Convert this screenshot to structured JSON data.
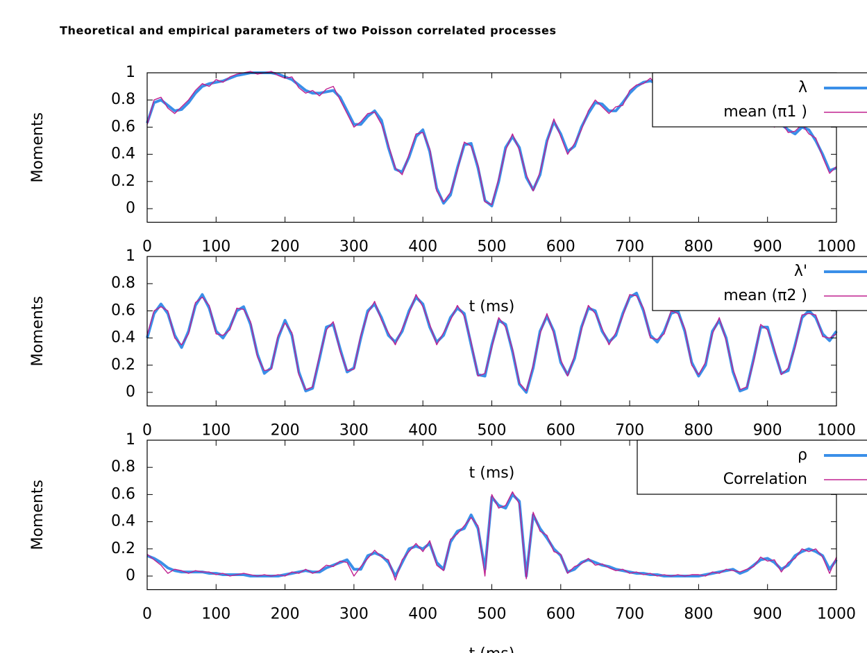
{
  "title": "Theoretical and empirical parameters of two Poisson correlated processes",
  "chart_data": [
    {
      "type": "line",
      "ylabel": "Moments",
      "xlabel": "t (ms)",
      "xlim": [
        0,
        1000
      ],
      "ylim": [
        -0.1,
        1
      ],
      "xticks": [
        0,
        100,
        200,
        300,
        400,
        500,
        600,
        700,
        800,
        900,
        1000
      ],
      "yticks": [
        0,
        0.2,
        0.4,
        0.6,
        0.8,
        1
      ],
      "legend": "upper right",
      "x": [
        0,
        10,
        20,
        30,
        40,
        50,
        60,
        70,
        80,
        90,
        100,
        110,
        120,
        130,
        140,
        150,
        160,
        170,
        180,
        190,
        200,
        210,
        220,
        230,
        240,
        250,
        260,
        270,
        280,
        290,
        300,
        310,
        320,
        330,
        340,
        350,
        360,
        370,
        380,
        390,
        400,
        410,
        420,
        430,
        440,
        450,
        460,
        470,
        480,
        490,
        500,
        510,
        520,
        530,
        540,
        550,
        560,
        570,
        580,
        590,
        600,
        610,
        620,
        630,
        640,
        650,
        660,
        670,
        680,
        690,
        700,
        710,
        720,
        730,
        740,
        750,
        760,
        770,
        780,
        790,
        800,
        810,
        820,
        830,
        840,
        850,
        860,
        870,
        880,
        890,
        900,
        910,
        920,
        930,
        940,
        950,
        960,
        970,
        980,
        990,
        1000
      ],
      "series": [
        {
          "name": "λ",
          "color": "#3a8fe8",
          "values": [
            0.63,
            0.78,
            0.8,
            0.76,
            0.72,
            0.73,
            0.78,
            0.85,
            0.9,
            0.92,
            0.93,
            0.94,
            0.96,
            0.98,
            0.99,
            1.0,
            1.0,
            1.0,
            1.0,
            0.99,
            0.97,
            0.95,
            0.91,
            0.87,
            0.85,
            0.85,
            0.86,
            0.87,
            0.82,
            0.72,
            0.62,
            0.62,
            0.68,
            0.72,
            0.65,
            0.45,
            0.29,
            0.27,
            0.38,
            0.53,
            0.58,
            0.42,
            0.15,
            0.04,
            0.1,
            0.3,
            0.47,
            0.48,
            0.3,
            0.06,
            0.02,
            0.2,
            0.45,
            0.53,
            0.45,
            0.23,
            0.14,
            0.25,
            0.5,
            0.64,
            0.55,
            0.42,
            0.46,
            0.6,
            0.7,
            0.78,
            0.77,
            0.72,
            0.72,
            0.78,
            0.85,
            0.9,
            0.93,
            0.94,
            0.92,
            0.93,
            0.95,
            0.96,
            0.97,
            0.97,
            0.96,
            0.95,
            0.93,
            0.9,
            0.88,
            0.85,
            0.82,
            0.78,
            0.74,
            0.7,
            0.66,
            0.63,
            0.62,
            0.58,
            0.55,
            0.6,
            0.58,
            0.5,
            0.4,
            0.28,
            0.3
          ]
        },
        {
          "name": "mean (π1 )",
          "color": "#c0208f",
          "values": [
            0.62,
            0.8,
            0.82,
            0.74,
            0.7,
            0.75,
            0.8,
            0.87,
            0.92,
            0.9,
            0.95,
            0.93,
            0.97,
            0.99,
            1.0,
            1.01,
            0.99,
            1.0,
            1.01,
            0.98,
            0.96,
            0.97,
            0.89,
            0.85,
            0.87,
            0.83,
            0.88,
            0.9,
            0.8,
            0.7,
            0.6,
            0.64,
            0.7,
            0.71,
            0.62,
            0.47,
            0.3,
            0.25,
            0.4,
            0.55,
            0.56,
            0.44,
            0.13,
            0.05,
            0.12,
            0.28,
            0.49,
            0.46,
            0.32,
            0.05,
            0.03,
            0.22,
            0.43,
            0.55,
            0.43,
            0.25,
            0.13,
            0.27,
            0.48,
            0.66,
            0.53,
            0.4,
            0.48,
            0.58,
            0.72,
            0.8,
            0.75,
            0.7,
            0.75,
            0.76,
            0.87,
            0.91,
            0.92,
            0.96,
            0.9,
            0.94,
            0.93,
            0.97,
            0.95,
            0.98,
            0.94,
            0.96,
            0.92,
            0.91,
            0.86,
            0.87,
            0.8,
            0.79,
            0.72,
            0.71,
            0.64,
            0.6,
            0.64,
            0.56,
            0.57,
            0.62,
            0.55,
            0.52,
            0.38,
            0.26,
            0.31
          ]
        }
      ]
    },
    {
      "type": "line",
      "ylabel": "Moments",
      "xlabel": "t (ms)",
      "xlim": [
        0,
        1000
      ],
      "ylim": [
        -0.1,
        1
      ],
      "xticks": [
        0,
        100,
        200,
        300,
        400,
        500,
        600,
        700,
        800,
        900,
        1000
      ],
      "yticks": [
        0,
        0.2,
        0.4,
        0.6,
        0.8,
        1
      ],
      "legend": "upper right",
      "x": [
        0,
        10,
        20,
        30,
        40,
        50,
        60,
        70,
        80,
        90,
        100,
        110,
        120,
        130,
        140,
        150,
        160,
        170,
        180,
        190,
        200,
        210,
        220,
        230,
        240,
        250,
        260,
        270,
        280,
        290,
        300,
        310,
        320,
        330,
        340,
        350,
        360,
        370,
        380,
        390,
        400,
        410,
        420,
        430,
        440,
        450,
        460,
        470,
        480,
        490,
        500,
        510,
        520,
        530,
        540,
        550,
        560,
        570,
        580,
        590,
        600,
        610,
        620,
        630,
        640,
        650,
        660,
        670,
        680,
        690,
        700,
        710,
        720,
        730,
        740,
        750,
        760,
        770,
        780,
        790,
        800,
        810,
        820,
        830,
        840,
        850,
        860,
        870,
        880,
        890,
        900,
        910,
        920,
        930,
        940,
        950,
        960,
        970,
        980,
        990,
        1000
      ],
      "series": [
        {
          "name": "λ'",
          "color": "#3a8fe8",
          "values": [
            0.4,
            0.58,
            0.65,
            0.58,
            0.42,
            0.33,
            0.45,
            0.64,
            0.72,
            0.62,
            0.45,
            0.4,
            0.48,
            0.6,
            0.63,
            0.5,
            0.28,
            0.14,
            0.18,
            0.4,
            0.53,
            0.42,
            0.15,
            0.01,
            0.03,
            0.25,
            0.48,
            0.5,
            0.32,
            0.15,
            0.18,
            0.4,
            0.6,
            0.65,
            0.55,
            0.42,
            0.37,
            0.45,
            0.6,
            0.7,
            0.65,
            0.48,
            0.37,
            0.42,
            0.55,
            0.62,
            0.58,
            0.35,
            0.13,
            0.12,
            0.35,
            0.53,
            0.5,
            0.3,
            0.06,
            0.0,
            0.18,
            0.45,
            0.56,
            0.45,
            0.22,
            0.13,
            0.25,
            0.48,
            0.62,
            0.6,
            0.45,
            0.37,
            0.42,
            0.58,
            0.7,
            0.73,
            0.6,
            0.42,
            0.37,
            0.45,
            0.58,
            0.6,
            0.45,
            0.22,
            0.12,
            0.2,
            0.45,
            0.53,
            0.4,
            0.15,
            0.01,
            0.03,
            0.25,
            0.48,
            0.48,
            0.3,
            0.14,
            0.16,
            0.35,
            0.55,
            0.6,
            0.55,
            0.43,
            0.38,
            0.45
          ]
        },
        {
          "name": "mean (π2 )",
          "color": "#c0208f",
          "values": [
            0.42,
            0.6,
            0.63,
            0.6,
            0.4,
            0.35,
            0.43,
            0.66,
            0.7,
            0.64,
            0.43,
            0.42,
            0.46,
            0.62,
            0.61,
            0.52,
            0.26,
            0.16,
            0.17,
            0.42,
            0.51,
            0.44,
            0.13,
            0.02,
            0.04,
            0.27,
            0.46,
            0.52,
            0.3,
            0.16,
            0.17,
            0.42,
            0.58,
            0.67,
            0.53,
            0.44,
            0.35,
            0.47,
            0.58,
            0.72,
            0.63,
            0.5,
            0.35,
            0.44,
            0.53,
            0.64,
            0.56,
            0.37,
            0.12,
            0.14,
            0.33,
            0.55,
            0.48,
            0.32,
            0.07,
            0.01,
            0.2,
            0.43,
            0.58,
            0.43,
            0.24,
            0.12,
            0.27,
            0.46,
            0.64,
            0.58,
            0.47,
            0.35,
            0.44,
            0.56,
            0.72,
            0.71,
            0.62,
            0.4,
            0.39,
            0.43,
            0.6,
            0.58,
            0.47,
            0.2,
            0.13,
            0.22,
            0.43,
            0.55,
            0.38,
            0.17,
            0.02,
            0.04,
            0.23,
            0.5,
            0.46,
            0.32,
            0.13,
            0.18,
            0.33,
            0.57,
            0.58,
            0.57,
            0.41,
            0.4,
            0.43
          ]
        }
      ]
    },
    {
      "type": "line",
      "ylabel": "Moments",
      "xlabel": "t (ms)",
      "xlim": [
        0,
        1000
      ],
      "ylim": [
        -0.1,
        1
      ],
      "xticks": [
        0,
        100,
        200,
        300,
        400,
        500,
        600,
        700,
        800,
        900,
        1000
      ],
      "yticks": [
        0,
        0.2,
        0.4,
        0.6,
        0.8,
        1
      ],
      "legend": "upper right",
      "x": [
        0,
        10,
        20,
        30,
        40,
        50,
        60,
        70,
        80,
        90,
        100,
        110,
        120,
        130,
        140,
        150,
        160,
        170,
        180,
        190,
        200,
        210,
        220,
        230,
        240,
        250,
        260,
        270,
        280,
        290,
        300,
        310,
        320,
        330,
        340,
        350,
        360,
        370,
        380,
        390,
        400,
        410,
        420,
        430,
        440,
        450,
        460,
        470,
        480,
        490,
        500,
        510,
        520,
        530,
        540,
        550,
        560,
        570,
        580,
        590,
        600,
        610,
        620,
        630,
        640,
        650,
        660,
        670,
        680,
        690,
        700,
        710,
        720,
        730,
        740,
        750,
        760,
        770,
        780,
        790,
        800,
        810,
        820,
        830,
        840,
        850,
        860,
        870,
        880,
        890,
        900,
        910,
        920,
        930,
        940,
        950,
        960,
        970,
        980,
        990,
        1000
      ],
      "series": [
        {
          "name": "ρ",
          "color": "#3a8fe8",
          "values": [
            0.15,
            0.13,
            0.1,
            0.06,
            0.04,
            0.03,
            0.03,
            0.03,
            0.03,
            0.02,
            0.02,
            0.01,
            0.01,
            0.01,
            0.01,
            0.0,
            0.0,
            0.0,
            0.0,
            0.0,
            0.01,
            0.02,
            0.03,
            0.04,
            0.03,
            0.03,
            0.06,
            0.08,
            0.1,
            0.12,
            0.05,
            0.05,
            0.15,
            0.17,
            0.15,
            0.1,
            0.0,
            0.1,
            0.2,
            0.22,
            0.2,
            0.24,
            0.1,
            0.05,
            0.25,
            0.33,
            0.35,
            0.45,
            0.35,
            0.05,
            0.58,
            0.52,
            0.5,
            0.6,
            0.55,
            0.0,
            0.45,
            0.35,
            0.28,
            0.2,
            0.15,
            0.03,
            0.05,
            0.1,
            0.12,
            0.1,
            0.08,
            0.07,
            0.05,
            0.04,
            0.03,
            0.02,
            0.02,
            0.01,
            0.01,
            0.0,
            0.0,
            0.0,
            0.0,
            0.0,
            0.0,
            0.01,
            0.02,
            0.03,
            0.04,
            0.05,
            0.02,
            0.04,
            0.08,
            0.12,
            0.13,
            0.1,
            0.05,
            0.08,
            0.15,
            0.18,
            0.2,
            0.18,
            0.15,
            0.05,
            0.12
          ]
        },
        {
          "name": "Correlation",
          "color": "#c0208f",
          "values": [
            0.16,
            0.12,
            0.08,
            0.02,
            0.05,
            0.04,
            0.02,
            0.04,
            0.03,
            0.03,
            0.01,
            0.02,
            0.0,
            0.01,
            0.02,
            0.01,
            0.0,
            0.01,
            0.0,
            0.01,
            0.0,
            0.03,
            0.02,
            0.05,
            0.02,
            0.04,
            0.08,
            0.07,
            0.11,
            0.1,
            0.0,
            0.07,
            0.13,
            0.19,
            0.14,
            0.12,
            -0.03,
            0.12,
            0.18,
            0.24,
            0.18,
            0.26,
            0.08,
            0.04,
            0.27,
            0.31,
            0.37,
            0.43,
            0.37,
            0.0,
            0.6,
            0.5,
            0.52,
            0.62,
            0.53,
            -0.02,
            0.47,
            0.33,
            0.3,
            0.18,
            0.16,
            0.02,
            0.07,
            0.09,
            0.13,
            0.08,
            0.09,
            0.06,
            0.04,
            0.05,
            0.02,
            0.03,
            0.01,
            0.02,
            0.0,
            0.01,
            0.0,
            0.01,
            0.0,
            0.01,
            0.01,
            0.0,
            0.03,
            0.02,
            0.05,
            0.04,
            0.03,
            0.05,
            0.07,
            0.14,
            0.11,
            0.12,
            0.03,
            0.1,
            0.13,
            0.2,
            0.18,
            0.2,
            0.14,
            0.02,
            0.14
          ]
        }
      ]
    }
  ]
}
